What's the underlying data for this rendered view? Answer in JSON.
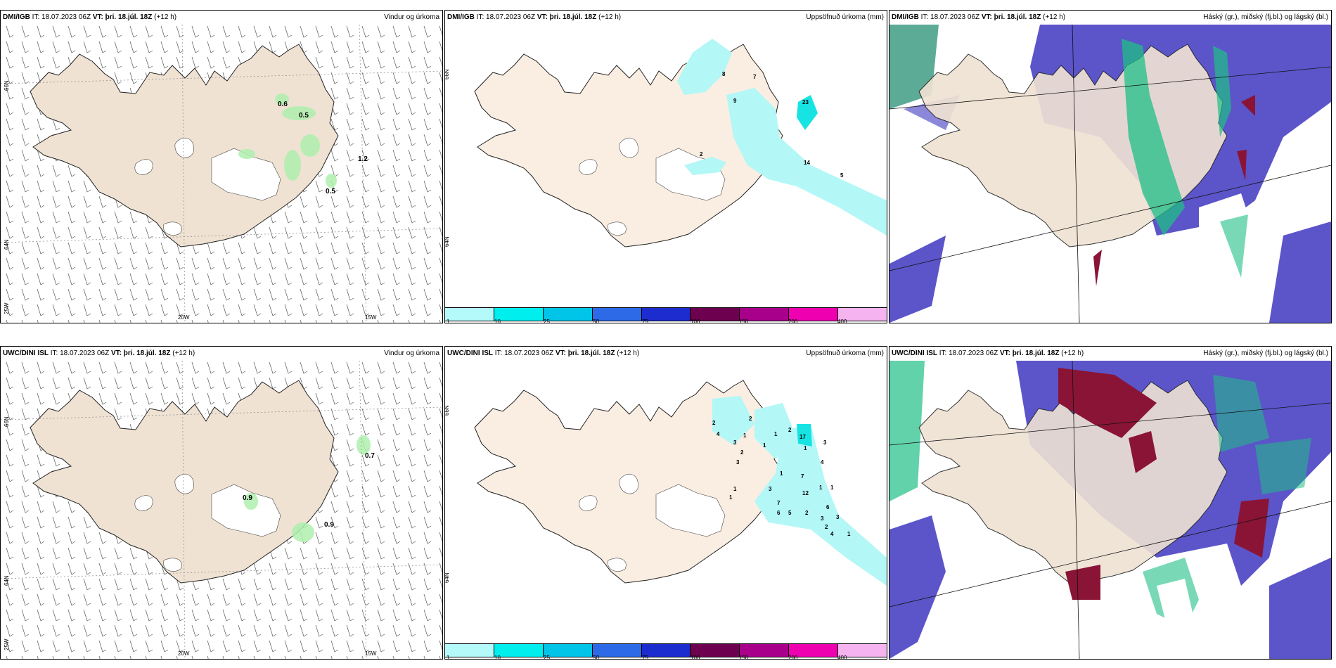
{
  "colors": {
    "land": "#efe2d3",
    "wind_precip": "#aef0ae",
    "precip_light": "#b3f7f7",
    "precip_med": "#18e3e3",
    "cloud_high": "#5b55c9",
    "cloud_mid": "#1fbf86",
    "cloud_low": "#8a1436"
  },
  "panels": [
    {
      "model": "DMI/IGB",
      "it_label": "IT:",
      "it_value": "18.07.2023 06Z",
      "vt_label": "VT:",
      "vt_value": "þri. 18.júl. 18Z",
      "lead": "(+12 h)",
      "variable": "Vindur og úrkoma",
      "lat_labels": [
        "66N",
        "64N"
      ],
      "lon_labels": [
        "20W",
        "15W"
      ],
      "corner_label": "25W",
      "values": [
        "0.6",
        "0.5",
        "1.2",
        "0.5"
      ]
    },
    {
      "model": "DMI/IGB",
      "it_label": "IT:",
      "it_value": "18.07.2023 06Z",
      "vt_label": "VT:",
      "vt_value": "þri. 18.júl. 18Z",
      "lead": "(+12 h)",
      "variable": "Uppsöfnuð úrkoma (mm)",
      "lat_labels": [
        "66N",
        "64N"
      ],
      "values": [
        "8",
        "7",
        "9",
        "23",
        "2",
        "14",
        "5"
      ]
    },
    {
      "model": "DMI/IGB",
      "it_label": "IT:",
      "it_value": "18.07.2023 06Z",
      "vt_label": "VT:",
      "vt_value": "þri. 18.júl. 18Z",
      "lead": "(+12 h)",
      "variable": "Háský (gr.), miðský (fj.bl.) og lágský (bl.)"
    },
    {
      "model": "UWC/DINI ISL",
      "it_label": "IT:",
      "it_value": "18.07.2023 06Z",
      "vt_label": "VT:",
      "vt_value": "þri. 18.júl. 18Z",
      "lead": "(+12 h)",
      "variable": "Vindur og úrkoma",
      "lat_labels": [
        "66N",
        "64N"
      ],
      "lon_labels": [
        "20W",
        "15W"
      ],
      "corner_label": "25W",
      "values": [
        "0.7",
        "0.9",
        "0.9"
      ]
    },
    {
      "model": "UWC/DINI ISL",
      "it_label": "IT:",
      "it_value": "18.07.2023 06Z",
      "vt_label": "VT:",
      "vt_value": "þri. 18.júl. 18Z",
      "lead": "(+12 h)",
      "variable": "Uppsöfnuð úrkoma (mm)",
      "lat_labels": [
        "66N",
        "64N"
      ],
      "values": [
        "2",
        "2",
        "1",
        "4",
        "1",
        "3",
        "2",
        "1",
        "2",
        "1",
        "17",
        "3",
        "3",
        "4",
        "1",
        "7",
        "1",
        "1",
        "3",
        "12",
        "1",
        "7",
        "6",
        "1",
        "3",
        "3",
        "6",
        "5",
        "2",
        "2",
        "1",
        "4"
      ]
    },
    {
      "model": "UWC/DINI ISL",
      "it_label": "IT:",
      "it_value": "18.07.2023 06Z",
      "vt_label": "VT:",
      "vt_value": "þri. 18.júl. 18Z",
      "lead": "(+12 h)",
      "variable": "Háský (gr.), miðský (fj.bl.) og lágský (bl.)"
    }
  ],
  "colorbar": {
    "ticks": [
      "1",
      "10",
      "25",
      "50",
      "75",
      "100",
      "150",
      "200",
      "400"
    ],
    "colors": [
      "#b4fafa",
      "#00eeee",
      "#00c5e8",
      "#2d6ae8",
      "#1c2ccf",
      "#6e0050",
      "#a8008a",
      "#ee00b0",
      "#f5b3f0"
    ]
  }
}
